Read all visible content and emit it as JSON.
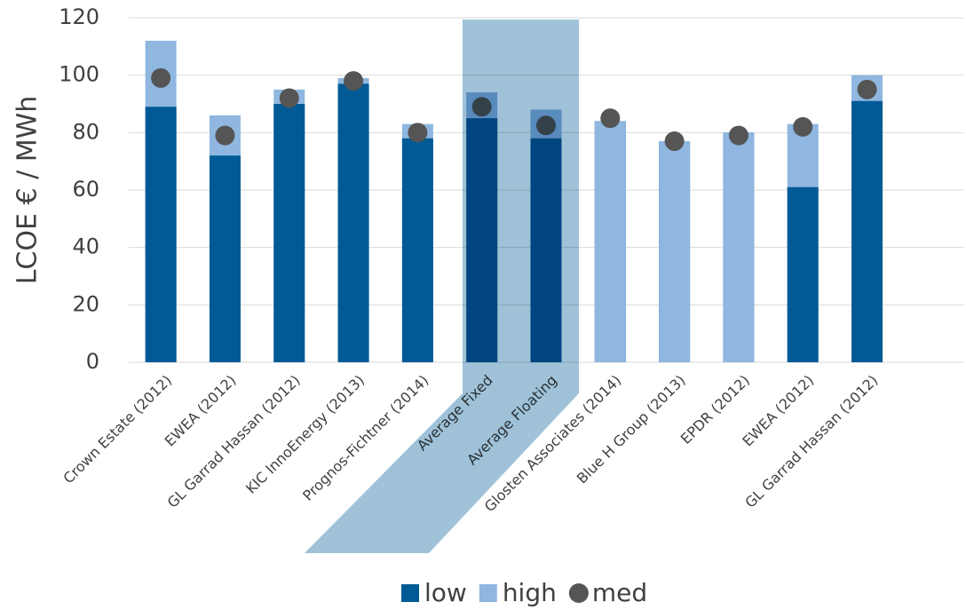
{
  "chart_data": {
    "type": "bar",
    "y_label": "LCOE € / MWh",
    "categories": [
      "Crown Estate (2012)",
      "EWEA (2012)",
      "GL Garrad Hassan (2012)",
      "KIC InnoEnergy (2013)",
      "Prognos-Fichtner (2014)",
      "Average Fixed",
      "Average Floating",
      "Glosten Associates (2014)",
      "Blue H Group (2013)",
      "EPDR (2012)",
      "EWEA (2012)",
      "GL Garrad Hassan (2012)"
    ],
    "series": [
      {
        "name": "low",
        "type": "bar",
        "color": "#005a96",
        "values": [
          89,
          72,
          90,
          97,
          78,
          85,
          78,
          84,
          77,
          80,
          61,
          91
        ]
      },
      {
        "name": "high",
        "type": "bar",
        "color": "#8fb7e0",
        "values": [
          112,
          86,
          95,
          99,
          83,
          94,
          88,
          84,
          77,
          80,
          83,
          100
        ]
      },
      {
        "name": "med",
        "type": "marker",
        "color": "#555555",
        "values": [
          99,
          79,
          92,
          98,
          80,
          89,
          82.5,
          85,
          77,
          79,
          82,
          95
        ]
      }
    ],
    "ylim": [
      0,
      120
    ],
    "yticks": [
      0,
      20,
      40,
      60,
      80,
      100,
      120
    ],
    "grid": true
  }
}
